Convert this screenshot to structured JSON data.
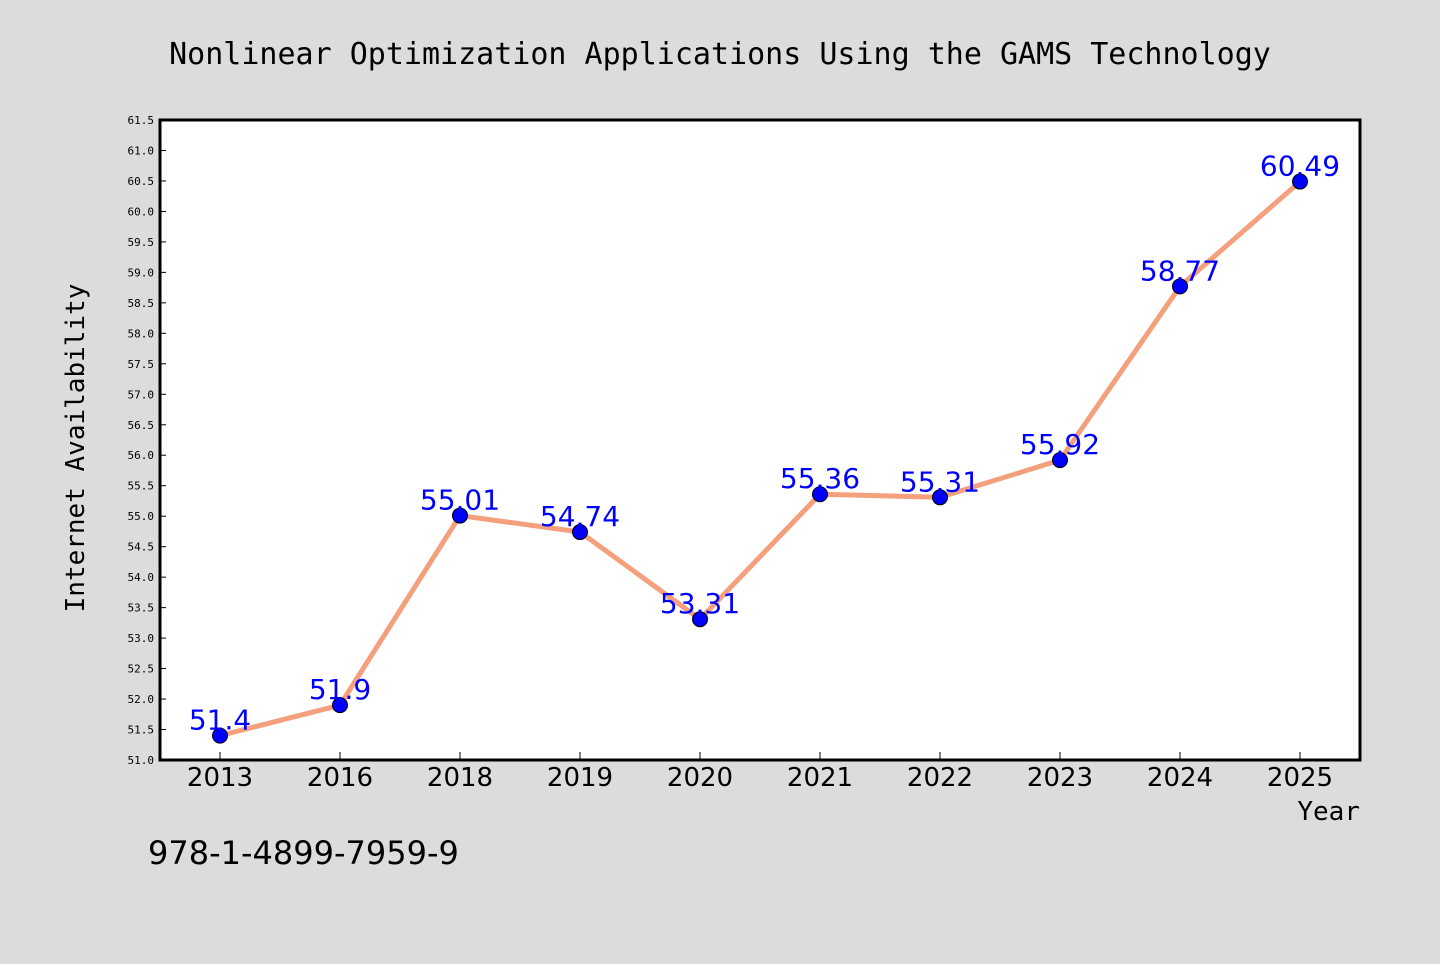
{
  "chart_data": {
    "type": "line",
    "title": "Nonlinear Optimization Applications Using the GAMS Technology",
    "xlabel": "Year",
    "ylabel": "Internet Availability",
    "categories": [
      "2013",
      "2016",
      "2018",
      "2019",
      "2020",
      "2021",
      "2022",
      "2023",
      "2024",
      "2025"
    ],
    "series": [
      {
        "values": [
          51.4,
          51.9,
          55.01,
          54.74,
          53.31,
          55.36,
          55.31,
          55.92,
          58.77,
          60.49
        ]
      }
    ],
    "data_labels": [
      "51.4",
      "51.9",
      "55.01",
      "54.74",
      "53.31",
      "55.36",
      "55.31",
      "55.92",
      "58.77",
      "60.49"
    ],
    "ylim": [
      51.0,
      61.5
    ],
    "yticks": [
      "51.0",
      "51.5",
      "52.0",
      "52.5",
      "53.0",
      "53.5",
      "54.0",
      "54.5",
      "55.0",
      "55.5",
      "56.0",
      "56.5",
      "57.0",
      "57.5",
      "58.0",
      "58.5",
      "59.0",
      "59.5",
      "60.0",
      "60.5",
      "61.0",
      "61.5"
    ],
    "grid": false,
    "colors": {
      "line": "#f4a07c",
      "marker": "#0000ff",
      "label": "#0000ff",
      "background": "#dcdcdc",
      "plot_area": "#ffffff"
    }
  },
  "footnote": "978-1-4899-7959-9"
}
